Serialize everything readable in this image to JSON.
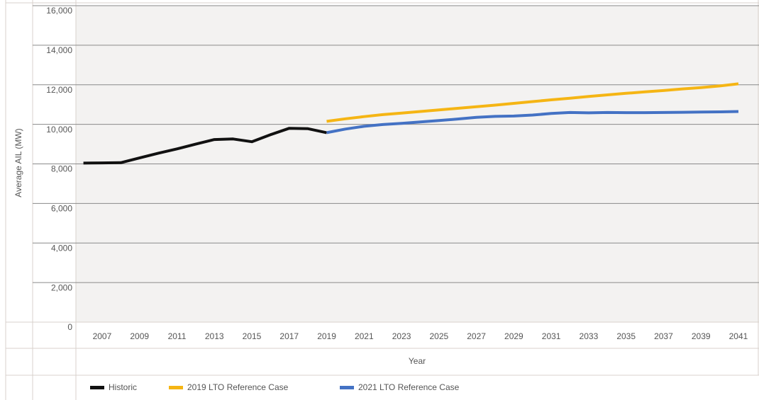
{
  "chart_data": {
    "type": "line",
    "y_label": "Average AIL (MW)",
    "x_label": "Year",
    "xlim": [
      2005.6,
      2042.1
    ],
    "xticks": [
      2007,
      2009,
      2011,
      2013,
      2015,
      2017,
      2019,
      2021,
      2023,
      2025,
      2027,
      2029,
      2031,
      2033,
      2035,
      2037,
      2039,
      2041
    ],
    "ylim": [
      0,
      16000
    ],
    "yticks": [
      0,
      {
        "value": 2000,
        "label": "2,000"
      },
      {
        "value": 4000,
        "label": "4,000"
      },
      {
        "value": 6000,
        "label": "6,000"
      },
      {
        "value": 8000,
        "label": "8,000"
      },
      {
        "value": 10000,
        "label": "10,000"
      },
      {
        "value": 12000,
        "label": "12,000"
      },
      {
        "value": 14000,
        "label": "14,000"
      },
      {
        "value": 16000,
        "label": "16,000"
      }
    ],
    "grid": true,
    "legend": "bottom",
    "series": [
      {
        "name": "Historic",
        "color": "#111111",
        "x": [
          2006,
          2007,
          2008,
          2009,
          2010,
          2011,
          2012,
          2013,
          2014,
          2015,
          2016,
          2017,
          2018,
          2019
        ],
        "values": [
          8040,
          8050,
          8060,
          8300,
          8540,
          8760,
          9000,
          9230,
          9260,
          9120,
          9480,
          9800,
          9780,
          9580
        ]
      },
      {
        "name": "2019 LTO Reference Case",
        "color": "#f5b514",
        "x": [
          2019,
          2020,
          2021,
          2022,
          2023,
          2024,
          2025,
          2026,
          2027,
          2028,
          2029,
          2030,
          2031,
          2032,
          2033,
          2034,
          2035,
          2036,
          2037,
          2038,
          2039,
          2040,
          2041
        ],
        "values": [
          10150,
          10280,
          10390,
          10490,
          10570,
          10650,
          10730,
          10810,
          10890,
          10970,
          11060,
          11150,
          11240,
          11320,
          11410,
          11490,
          11570,
          11640,
          11710,
          11790,
          11860,
          11940,
          12050
        ]
      },
      {
        "name": "2021 LTO Reference Case",
        "color": "#4472c4",
        "x": [
          2019,
          2020,
          2021,
          2022,
          2023,
          2024,
          2025,
          2026,
          2027,
          2028,
          2029,
          2030,
          2031,
          2032,
          2033,
          2034,
          2035,
          2036,
          2037,
          2038,
          2039,
          2040,
          2041
        ],
        "values": [
          9580,
          9760,
          9900,
          9990,
          10050,
          10120,
          10190,
          10270,
          10350,
          10400,
          10420,
          10470,
          10550,
          10600,
          10580,
          10600,
          10590,
          10590,
          10600,
          10610,
          10620,
          10630,
          10650
        ]
      }
    ]
  }
}
